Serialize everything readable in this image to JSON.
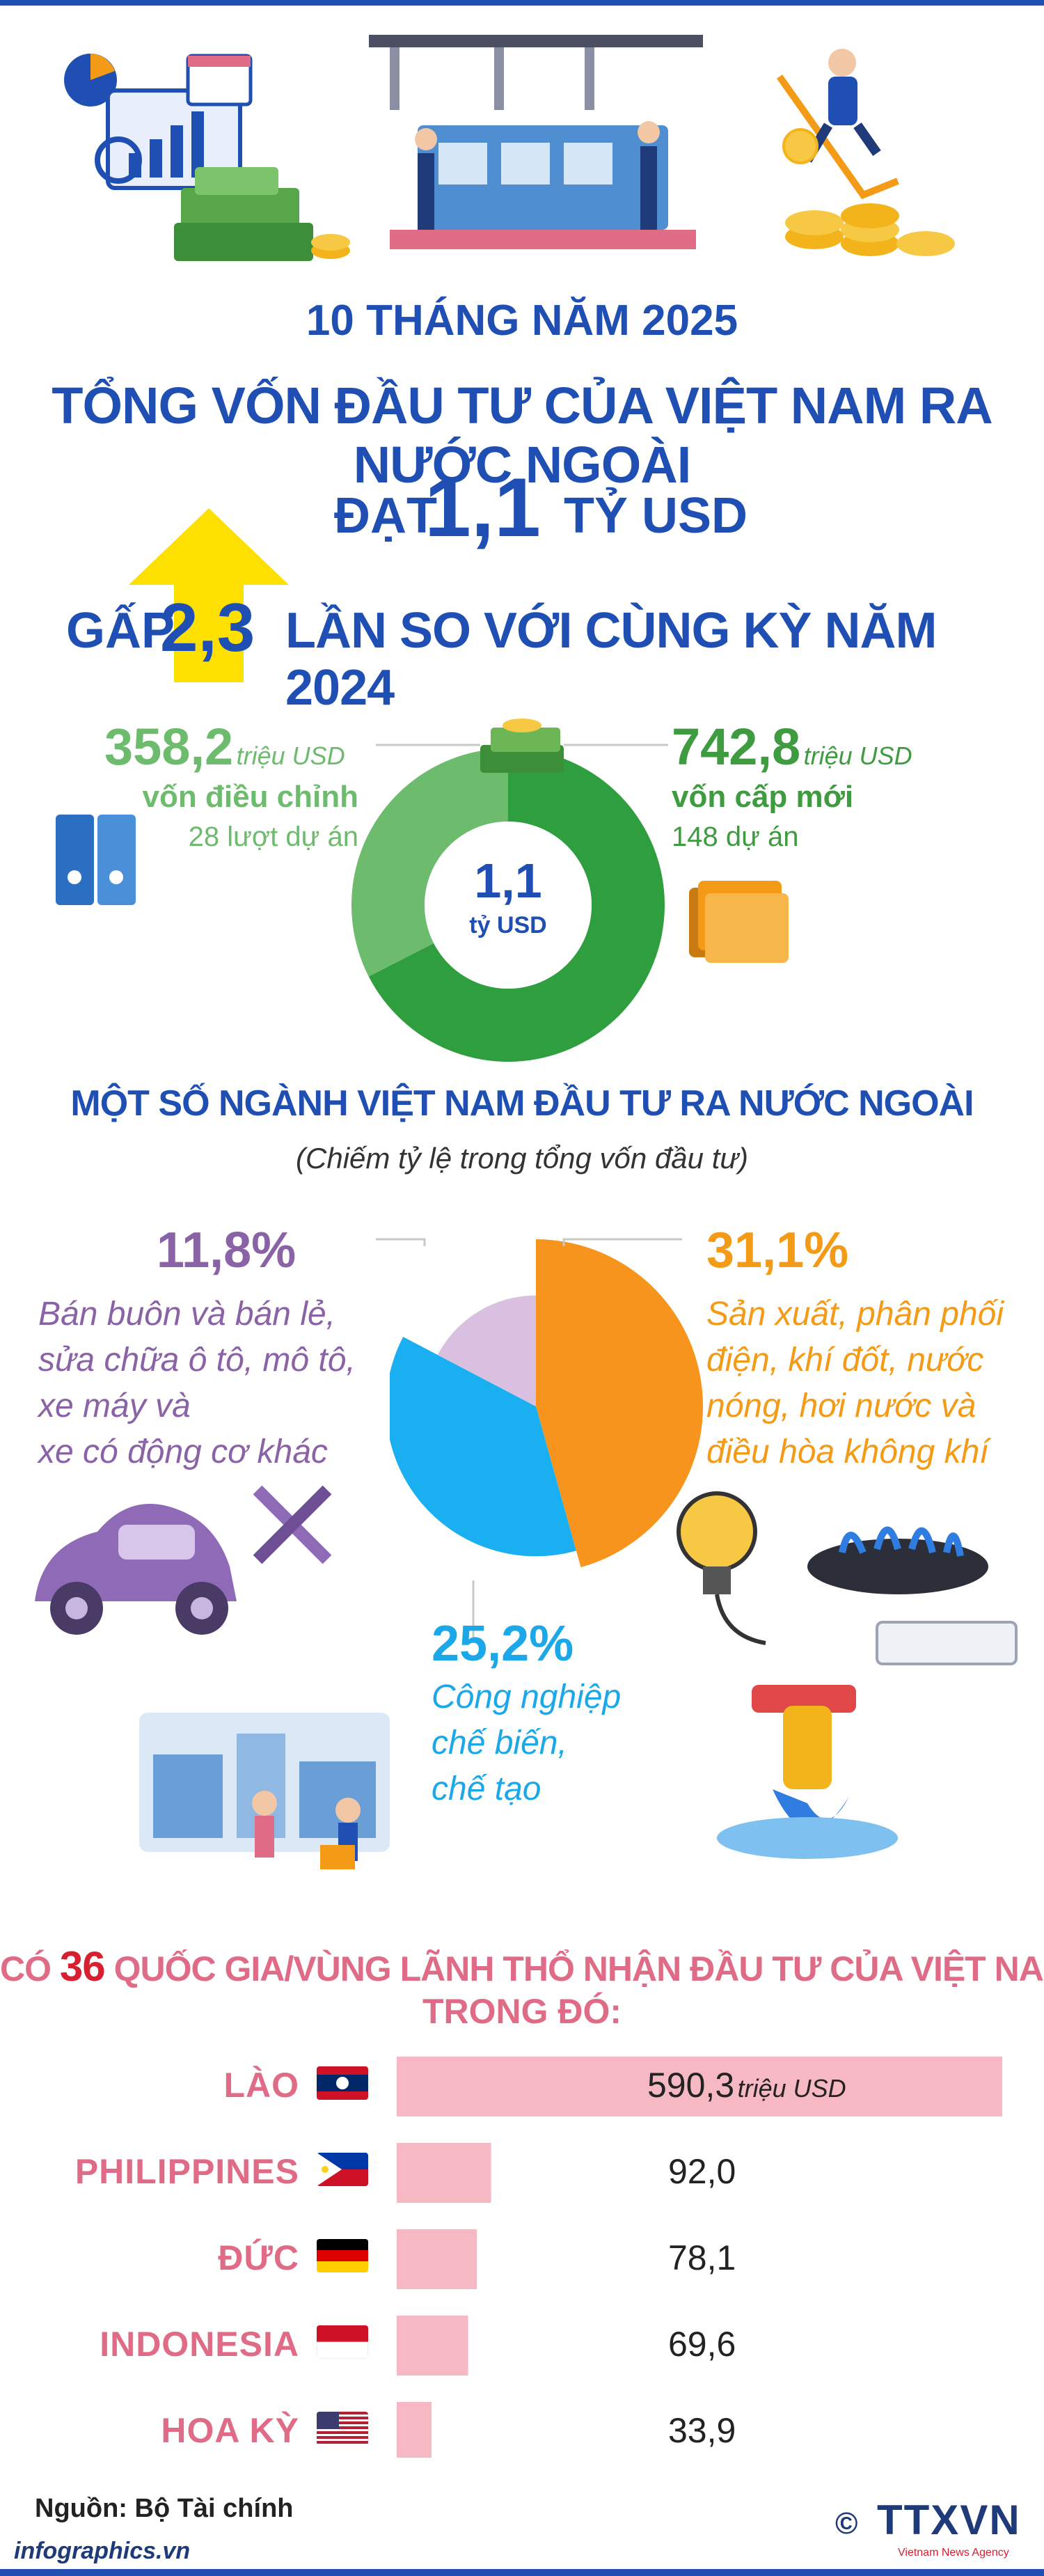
{
  "header": {
    "period": "10 THÁNG NĂM 2025",
    "headline": "TỔNG VỐN ĐẦU TƯ CỦA VIỆT NAM RA NƯỚC NGOÀI",
    "reach_prefix": "ĐẠT",
    "reach_value": "1,1",
    "reach_unit": "TỶ USD",
    "growth_prefix": "GẤP",
    "growth_value": "2,3",
    "growth_suffix": "LẦN SO VỚI CÙNG KỲ NĂM 2024"
  },
  "donut": {
    "center_value": "1,1",
    "center_unit": "tỷ USD",
    "left": {
      "value": "358,2",
      "unit": "triệu USD",
      "label": "vốn điều chỉnh",
      "projects": "28 lượt dự án"
    },
    "right": {
      "value": "742,8",
      "unit": "triệu USD",
      "label": "vốn cấp mới",
      "projects": "148 dự án"
    }
  },
  "sectors": {
    "title": "MỘT SỐ NGÀNH VIỆT NAM ĐẦU TƯ RA NƯỚC NGOÀI",
    "subtitle": "(Chiếm tỷ lệ trong tổng vốn đầu tư)",
    "items": [
      {
        "pct": "31,1%",
        "lines": [
          "Sản xuất, phân phối",
          "điện, khí đốt, nước",
          "nóng, hơi nước và",
          "điều hòa không khí"
        ]
      },
      {
        "pct": "25,2%",
        "lines": [
          "Công nghiệp",
          "chế biến,",
          "chế tạo"
        ]
      },
      {
        "pct": "11,8%",
        "lines": [
          "Bán buôn và bán lẻ,",
          "sửa chữa ô tô, mô tô,",
          "xe máy và",
          "xe có động cơ khác"
        ]
      }
    ]
  },
  "countries": {
    "title_prefix": "CÓ",
    "title_count": "36",
    "title_rest": "QUỐC GIA/VÙNG LÃNH THỔ NHẬN ĐẦU TƯ CỦA VIỆT NAM,",
    "title_line2": "TRONG ĐÓ:",
    "unit": "triệu USD"
  },
  "chart_data": [
    {
      "type": "pie",
      "categories": [
        "vốn cấp mới",
        "vốn điều chỉnh"
      ],
      "values": [
        742.8,
        358.2
      ],
      "colors": [
        "#2f9e3e",
        "#6dbb6d"
      ]
    },
    {
      "type": "pie",
      "categories": [
        "Sản xuất, phân phối điện, khí đốt, nước nóng, hơi nước và điều hòa không khí",
        "Công nghiệp chế biến, chế tạo",
        "Bán buôn và bán lẻ, sửa chữa ô tô, mô tô, xe máy và xe có động cơ khác"
      ],
      "values": [
        31.1,
        25.2,
        11.8
      ],
      "colors": [
        "#f7941d",
        "#1aaff0",
        "#d9bfe0"
      ]
    },
    {
      "type": "bar",
      "categories": [
        "LÀO",
        "PHILIPPINES",
        "ĐỨC",
        "INDONESIA",
        "HOA KỲ"
      ],
      "values": [
        590.3,
        92.0,
        78.1,
        69.6,
        33.9
      ],
      "value_labels": [
        "590,3",
        "92,0",
        "78,1",
        "69,6",
        "33,9"
      ],
      "unit": "triệu USD",
      "bar_color": "#f6b8c2"
    }
  ],
  "footer": {
    "source": "Nguồn: Bộ Tài chính",
    "site": "infographics.vn",
    "brand": "TTXVN",
    "brand_sub": "Vietnam News Agency",
    "copyright": "©"
  }
}
